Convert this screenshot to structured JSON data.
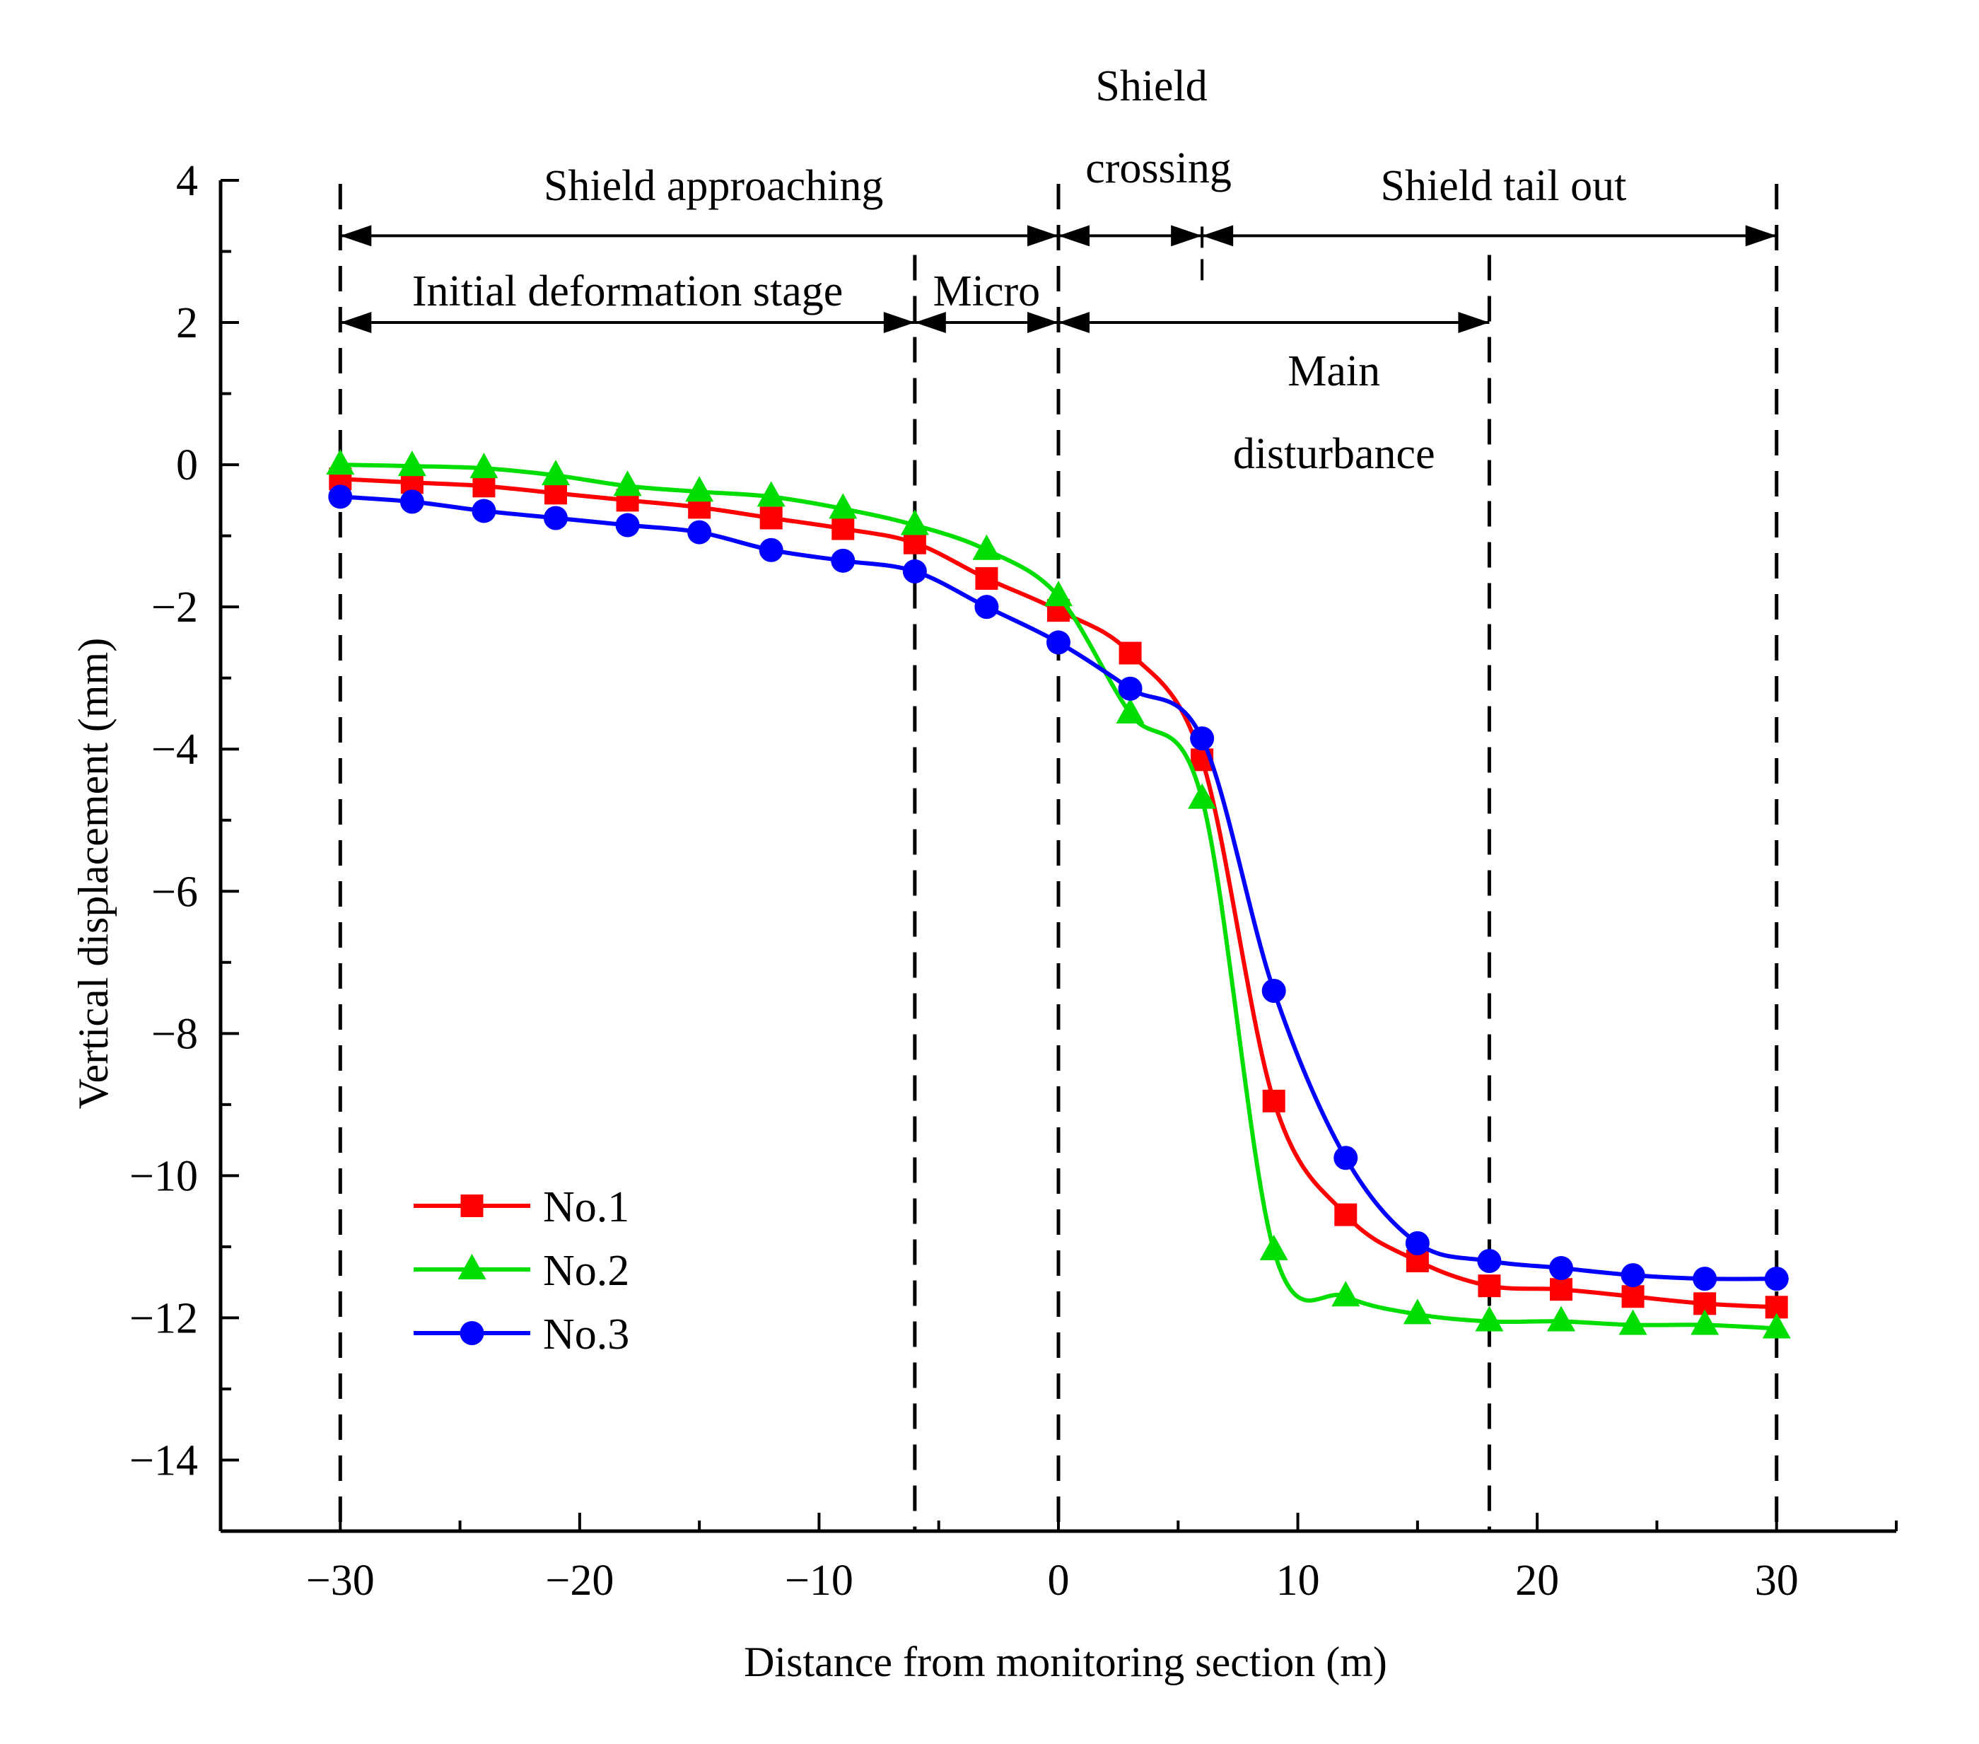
{
  "chart_data": {
    "type": "line",
    "title": "",
    "xlabel": "Distance from monitoring section (m)",
    "ylabel": "Vertical displacement (mm)",
    "xlim": [
      -35,
      35
    ],
    "ylim": [
      -15,
      4
    ],
    "xticks": [
      -30,
      -20,
      -10,
      0,
      10,
      20,
      30
    ],
    "yticks": [
      4,
      2,
      0,
      -2,
      -4,
      -6,
      -8,
      -10,
      -12,
      -14
    ],
    "xtick_labels": [
      "−30",
      "−20",
      "−10",
      "0",
      "10",
      "20",
      "30"
    ],
    "ytick_labels": [
      "4",
      "2",
      "0",
      "−2",
      "−4",
      "−6",
      "−8",
      "−10",
      "−12",
      "−14"
    ],
    "x": [
      -30,
      -27,
      -24,
      -21,
      -18,
      -15,
      -12,
      -9,
      -6,
      -3,
      0,
      3,
      6,
      9,
      12,
      15,
      18,
      21,
      24,
      27,
      30
    ],
    "series": [
      {
        "name": "No.1",
        "color": "#ff0000",
        "marker": "square",
        "values": [
          -0.2,
          -0.25,
          -0.3,
          -0.4,
          -0.5,
          -0.6,
          -0.75,
          -0.9,
          -1.1,
          -1.6,
          -2.05,
          -2.65,
          -4.15,
          -8.95,
          -10.55,
          -11.2,
          -11.55,
          -11.6,
          -11.7,
          -11.8,
          -11.85
        ]
      },
      {
        "name": "No.2",
        "color": "#00dd00",
        "marker": "triangle",
        "values": [
          0.0,
          -0.02,
          -0.05,
          -0.15,
          -0.3,
          -0.38,
          -0.45,
          -0.62,
          -0.85,
          -1.2,
          -1.85,
          -3.5,
          -4.7,
          -11.05,
          -11.7,
          -11.95,
          -12.05,
          -12.05,
          -12.1,
          -12.1,
          -12.15
        ]
      },
      {
        "name": "No.3",
        "color": "#0000ff",
        "marker": "circle",
        "values": [
          -0.45,
          -0.52,
          -0.65,
          -0.75,
          -0.85,
          -0.95,
          -1.2,
          -1.35,
          -1.5,
          -2.0,
          -2.5,
          -3.15,
          -3.85,
          -7.4,
          -9.75,
          -10.95,
          -11.2,
          -11.3,
          -11.4,
          -11.45,
          -11.45
        ]
      }
    ],
    "reference_lines_x": [
      -30,
      -6,
      0,
      18,
      30
    ],
    "short_marker_x": 6,
    "stages": [
      {
        "label": "Shield approaching",
        "from": -30,
        "to": 0,
        "level": "upper"
      },
      {
        "label": "Shield crossing",
        "line1": "Shield",
        "line2": "crossing",
        "from": 0,
        "to": 6,
        "level": "upper"
      },
      {
        "label": "Shield tail out",
        "from": 6,
        "to": 30,
        "level": "upper"
      },
      {
        "label": "Initial deformation stage",
        "from": -30,
        "to": -6,
        "level": "lower"
      },
      {
        "label": "Micro",
        "from": -6,
        "to": 0,
        "level": "lower"
      },
      {
        "label": "Main disturbance",
        "line1": "Main",
        "line2": "disturbance",
        "from": 0,
        "to": 18,
        "level": "lower"
      }
    ],
    "legend": {
      "position": "lower-left",
      "entries": [
        "No.1",
        "No.2",
        "No.3"
      ]
    },
    "grid": false
  }
}
